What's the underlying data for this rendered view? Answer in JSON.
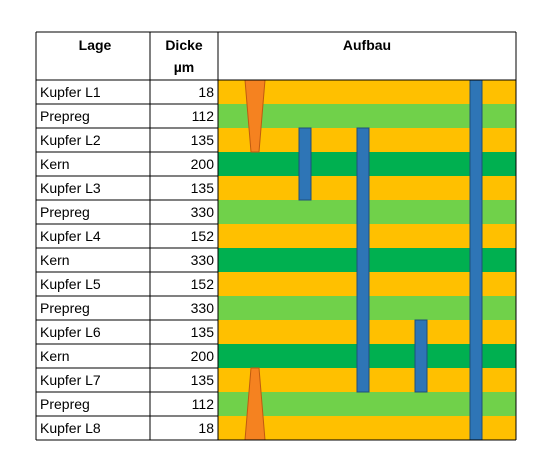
{
  "table": {
    "headers": {
      "layer": "Lage",
      "thickness_line1": "Dicke",
      "thickness_line2": "µm",
      "buildup": "Aufbau"
    },
    "rows": [
      {
        "layer": "Kupfer L1",
        "thickness": "18",
        "kind": "copper"
      },
      {
        "layer": "Prepreg",
        "thickness": "112",
        "kind": "prepreg"
      },
      {
        "layer": "Kupfer L2",
        "thickness": "135",
        "kind": "copper"
      },
      {
        "layer": "Kern",
        "thickness": "200",
        "kind": "core"
      },
      {
        "layer": "Kupfer L3",
        "thickness": "135",
        "kind": "copper"
      },
      {
        "layer": "Prepreg",
        "thickness": "330",
        "kind": "prepreg"
      },
      {
        "layer": "Kupfer L4",
        "thickness": "152",
        "kind": "copper"
      },
      {
        "layer": "Kern",
        "thickness": "330",
        "kind": "core"
      },
      {
        "layer": "Kupfer L5",
        "thickness": "152",
        "kind": "copper"
      },
      {
        "layer": "Prepreg",
        "thickness": "330",
        "kind": "prepreg"
      },
      {
        "layer": "Kupfer L6",
        "thickness": "135",
        "kind": "copper"
      },
      {
        "layer": "Kern",
        "thickness": "200",
        "kind": "core"
      },
      {
        "layer": "Kupfer L7",
        "thickness": "135",
        "kind": "copper"
      },
      {
        "layer": "Prepreg",
        "thickness": "112",
        "kind": "prepreg"
      },
      {
        "layer": "Kupfer L8",
        "thickness": "18",
        "kind": "copper"
      }
    ]
  },
  "colors": {
    "copper": "#FFC000",
    "prepreg": "#70D14A",
    "core": "#00B050",
    "via": "#2E75B6",
    "microvia": "#F58220",
    "grid": "#000000"
  },
  "vias": [
    {
      "type": "microvia-tapered",
      "from_row": 0,
      "to_row": 2
    },
    {
      "type": "buried",
      "from_row": 2,
      "to_row": 4
    },
    {
      "type": "buried",
      "from_row": 2,
      "to_row": 12
    },
    {
      "type": "buried",
      "from_row": 10,
      "to_row": 12
    },
    {
      "type": "through",
      "from_row": 0,
      "to_row": 14
    },
    {
      "type": "microvia-tapered-inverted",
      "from_row": 12,
      "to_row": 14
    }
  ]
}
